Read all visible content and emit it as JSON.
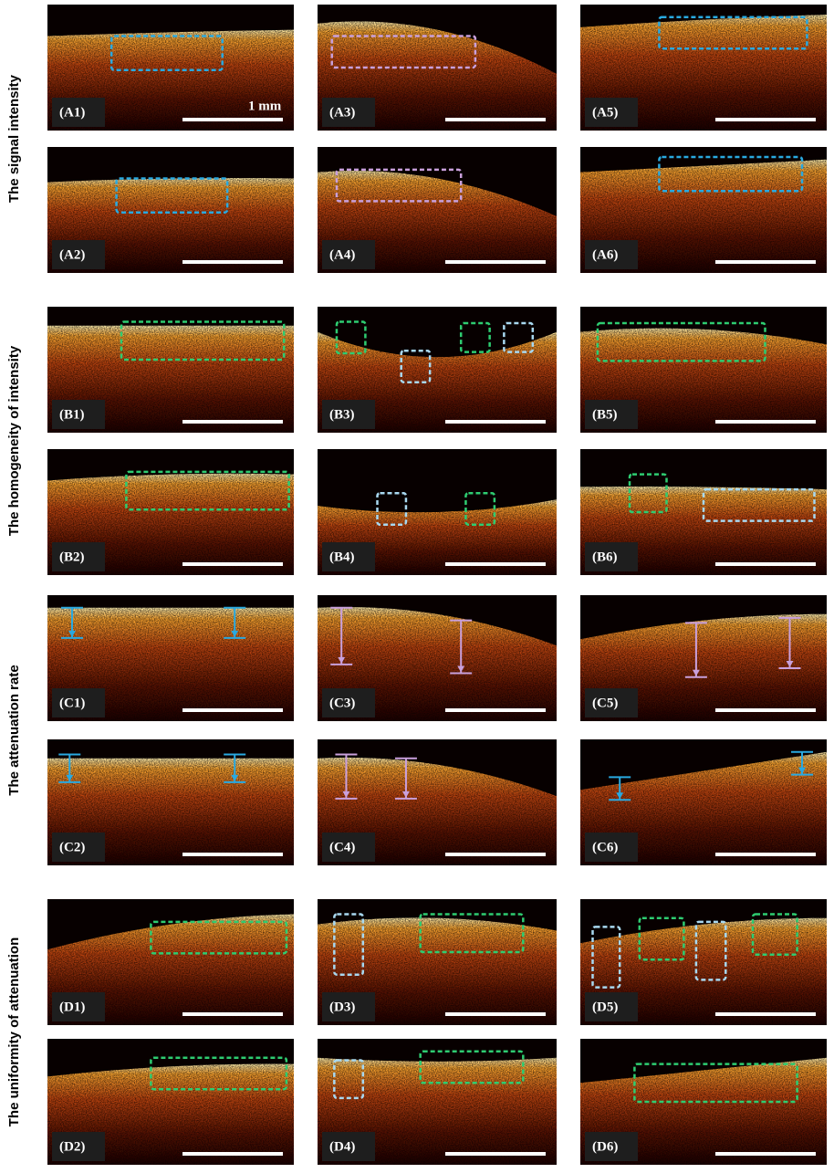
{
  "row_groups": [
    {
      "label": "The signal intensity",
      "panels": [
        [
          "(A1)",
          "(A3)",
          "(A5)"
        ],
        [
          "(A2)",
          "(A4)",
          "(A6)"
        ]
      ]
    },
    {
      "label": "The homogeneity of intensity",
      "panels": [
        [
          "(B1)",
          "(B3)",
          "(B5)"
        ],
        [
          "(B2)",
          "(B4)",
          "(B6)"
        ]
      ]
    },
    {
      "label": "The attenuation rate",
      "panels": [
        [
          "(C1)",
          "(C3)",
          "(C5)"
        ],
        [
          "(C2)",
          "(C4)",
          "(C6)"
        ]
      ]
    },
    {
      "label": "The uniformity of attenuation",
      "panels": [
        [
          "(D1)",
          "(D3)",
          "(D5)"
        ],
        [
          "(D2)",
          "(D4)",
          "(D6)"
        ]
      ]
    }
  ],
  "scale_label": "1 mm"
}
